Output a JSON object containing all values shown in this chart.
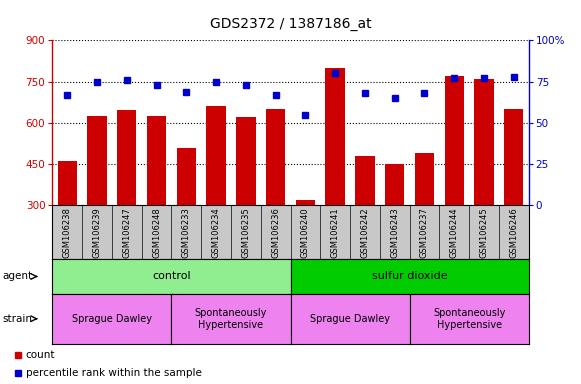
{
  "title": "GDS2372 / 1387186_at",
  "samples": [
    "GSM106238",
    "GSM106239",
    "GSM106247",
    "GSM106248",
    "GSM106233",
    "GSM106234",
    "GSM106235",
    "GSM106236",
    "GSM106240",
    "GSM106241",
    "GSM106242",
    "GSM106243",
    "GSM106237",
    "GSM106244",
    "GSM106245",
    "GSM106246"
  ],
  "counts": [
    460,
    625,
    645,
    625,
    510,
    660,
    620,
    650,
    320,
    800,
    480,
    450,
    490,
    770,
    760,
    650
  ],
  "percentiles": [
    67,
    75,
    76,
    73,
    69,
    75,
    73,
    67,
    55,
    80,
    68,
    65,
    68,
    77,
    77,
    78
  ],
  "ylim_left": [
    300,
    900
  ],
  "ylim_right": [
    0,
    100
  ],
  "yticks_left": [
    300,
    450,
    600,
    750,
    900
  ],
  "yticks_right": [
    0,
    25,
    50,
    75,
    100
  ],
  "bar_color": "#cc0000",
  "dot_color": "#0000cc",
  "left_axis_color": "#cc0000",
  "right_axis_color": "#0000cc",
  "agent_groups": [
    {
      "label": "control",
      "start": 0,
      "end": 8,
      "color": "#90ee90"
    },
    {
      "label": "sulfur dioxide",
      "start": 8,
      "end": 16,
      "color": "#00cc00"
    }
  ],
  "strain_groups": [
    {
      "label": "Sprague Dawley",
      "start": 0,
      "end": 4,
      "color": "#ee82ee"
    },
    {
      "label": "Spontaneously\nHypertensive",
      "start": 4,
      "end": 8,
      "color": "#ee82ee"
    },
    {
      "label": "Sprague Dawley",
      "start": 8,
      "end": 12,
      "color": "#ee82ee"
    },
    {
      "label": "Spontaneously\nHypertensive",
      "start": 12,
      "end": 16,
      "color": "#ee82ee"
    }
  ],
  "tick_area_color": "#c8c8c8"
}
